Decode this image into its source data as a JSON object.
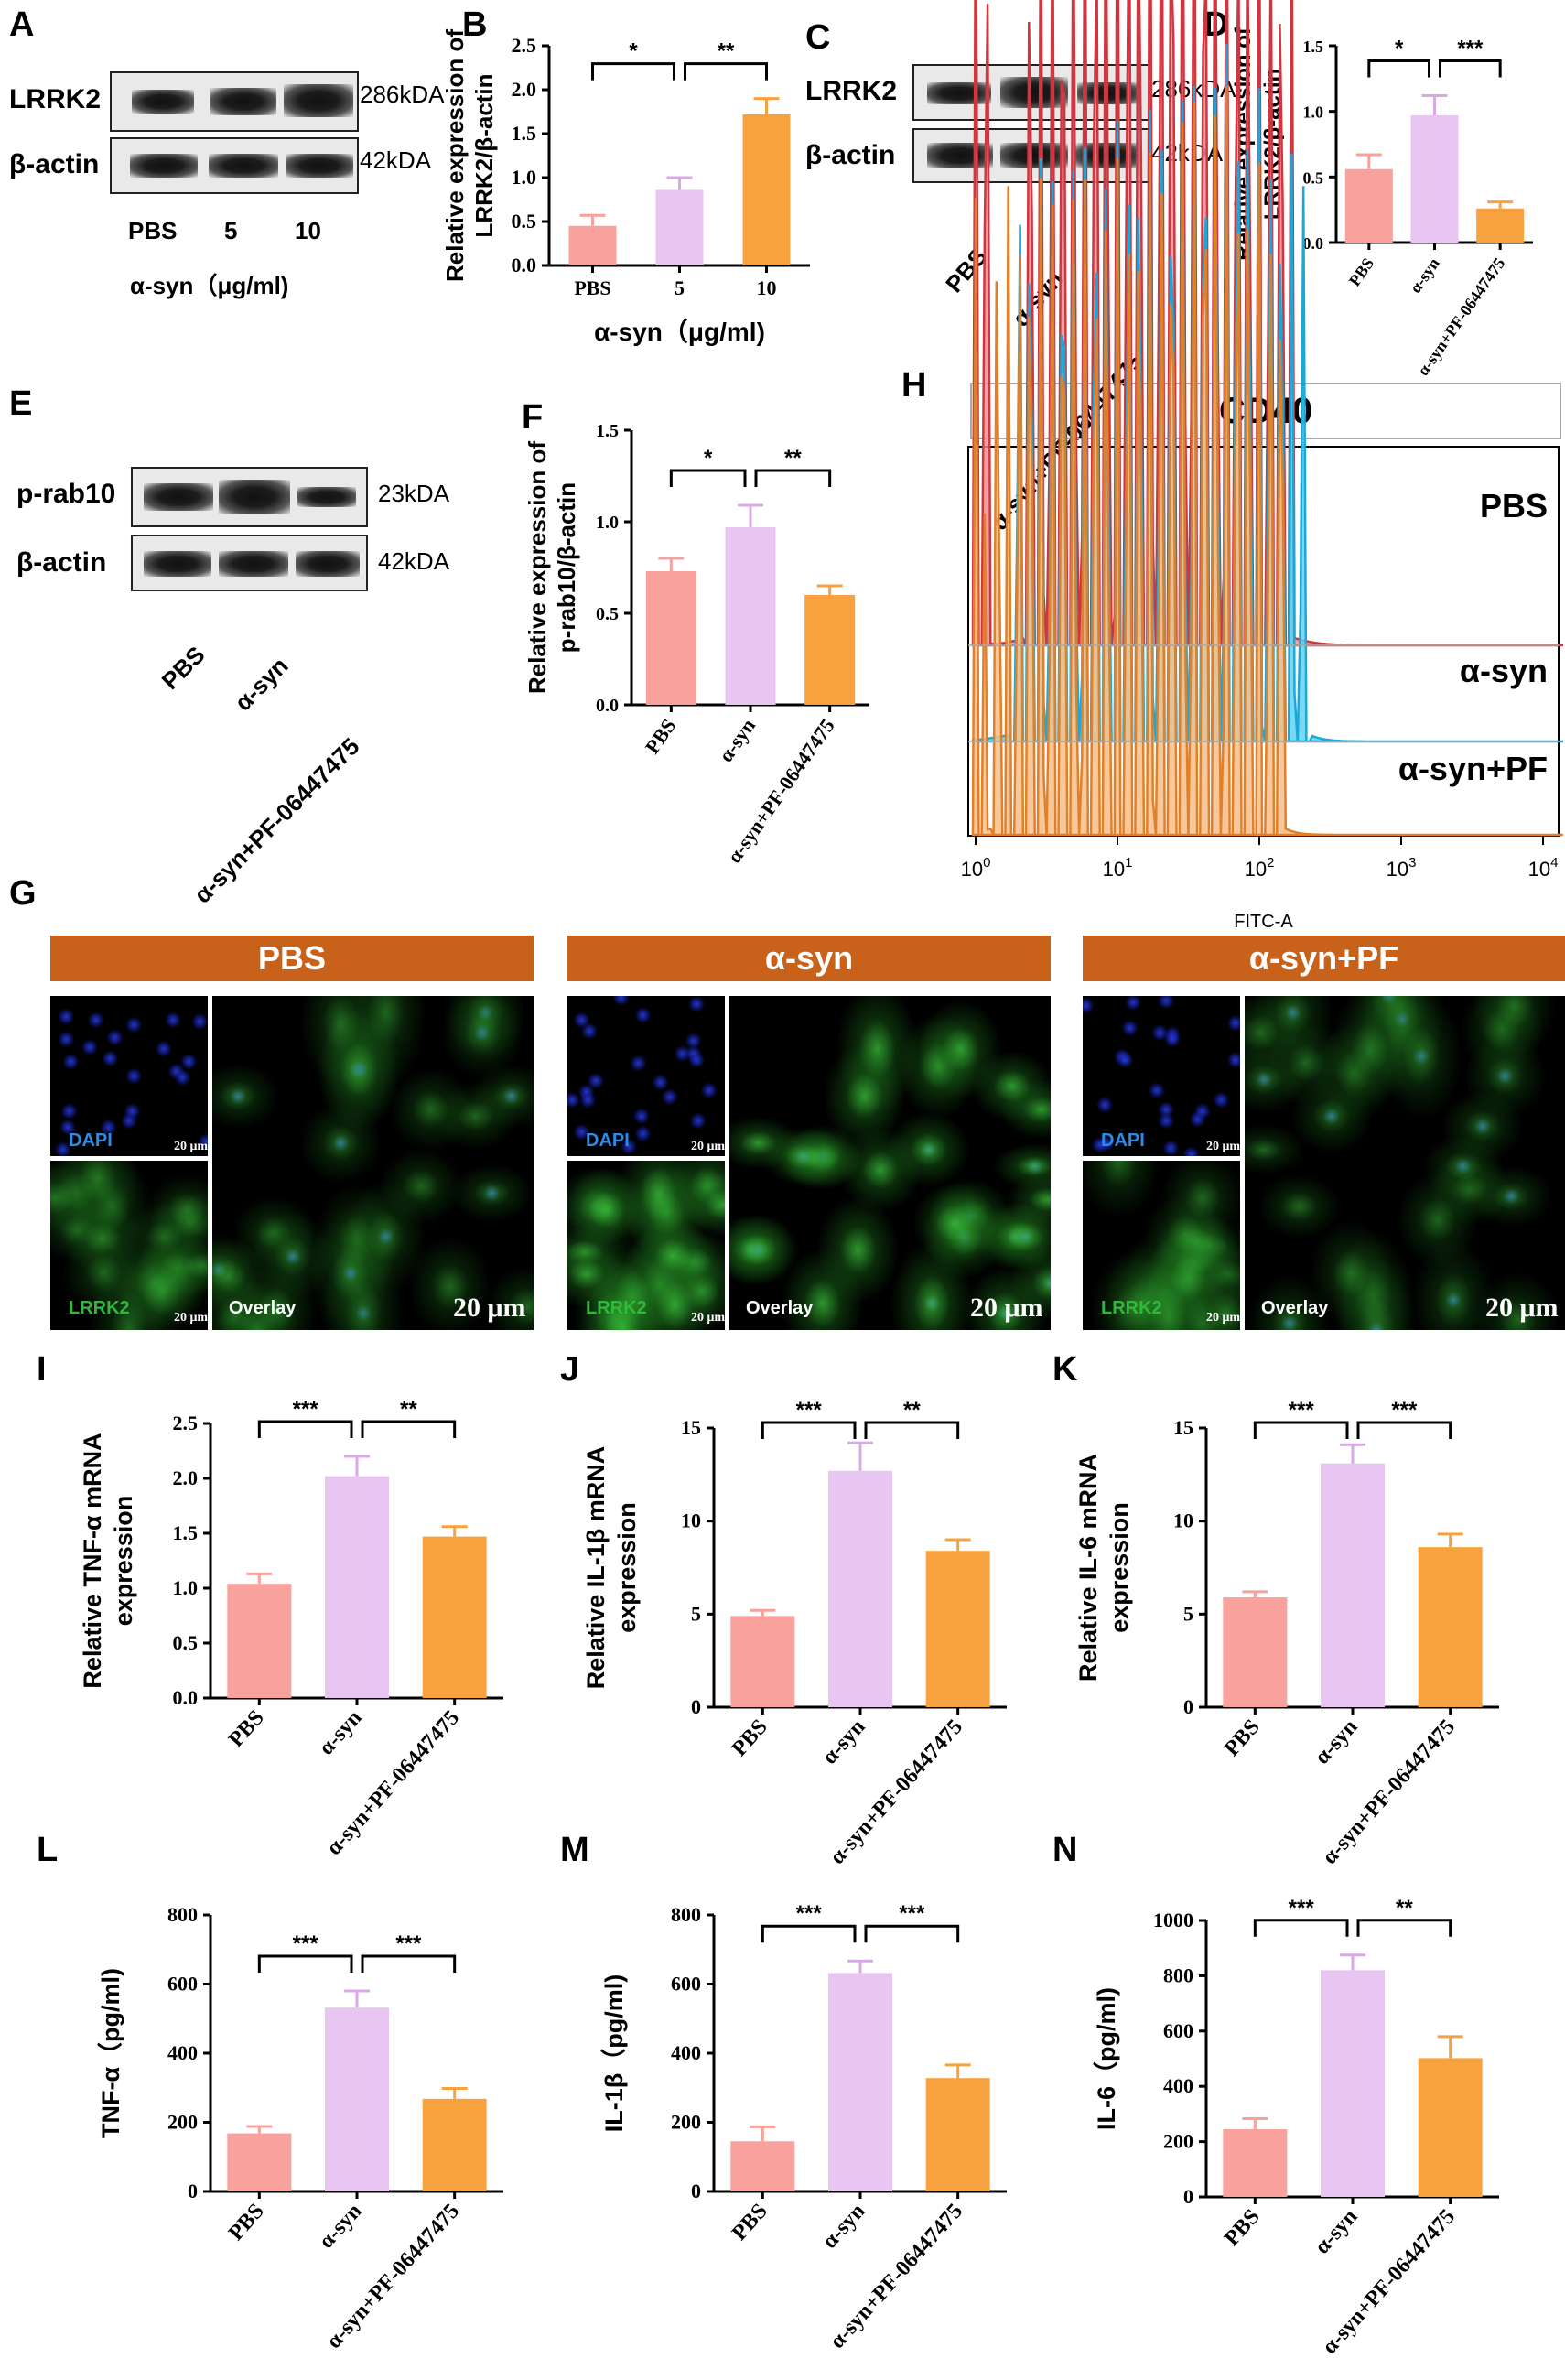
{
  "panels": {
    "A": "A",
    "B": "B",
    "C": "C",
    "D": "D",
    "E": "E",
    "F": "F",
    "G": "G",
    "H": "H",
    "I": "I",
    "J": "J",
    "K": "K",
    "L": "L",
    "M": "M",
    "N": "N"
  },
  "blot_A": {
    "rows": [
      "LRRK2",
      "β-actin"
    ],
    "kda": [
      "286kDA",
      "42kDA"
    ],
    "lanes": [
      "PBS",
      "5",
      "10"
    ],
    "xlabel": "α-syn（μg/ml)"
  },
  "blot_C": {
    "rows": [
      "LRRK2",
      "β-actin"
    ],
    "kda": [
      "286kDA",
      "42kDA"
    ],
    "lanes": [
      "PBS",
      "α-syn",
      "α-syn+PF-06447475"
    ]
  },
  "blot_E": {
    "rows": [
      "p-rab10",
      "β-actin"
    ],
    "kda": [
      "23kDA",
      "42kDA"
    ],
    "lanes": [
      "PBS",
      "α-syn",
      "α-syn+PF-06447475"
    ]
  },
  "flow": {
    "title": "CD40",
    "labels": [
      "PBS",
      "α-syn",
      "α-syn+PF"
    ],
    "xlabel": "FITC-A",
    "ticks": [
      "10",
      "10",
      "10",
      "10",
      "10"
    ],
    "tick_exp": [
      "0",
      "1",
      "2",
      "3",
      "4"
    ]
  },
  "if": {
    "groups": [
      "PBS",
      "α-syn",
      "α-syn+PF"
    ],
    "dapi": "DAPI",
    "lrrk2": "LRRK2",
    "overlay": "Overlay",
    "scale_small": "20 μm",
    "scale_big": "20 μm"
  },
  "colors": {
    "pbs": "#f9a19c",
    "asyn": "#e9c6f2",
    "pf": "#f8a23f",
    "flow_pbs": "#f28c93",
    "flow_asyn": "#5fd4f0",
    "flow_pf": "#f7be8a"
  },
  "chart_data": [
    {
      "id": "B",
      "type": "bar",
      "categories": [
        "PBS",
        "5",
        "10"
      ],
      "values": [
        0.45,
        0.86,
        1.72
      ],
      "errors": [
        0.12,
        0.14,
        0.18
      ],
      "ylim": [
        0,
        2.5
      ],
      "yticks": [
        "0.0",
        "0.5",
        "1.0",
        "1.5",
        "2.0",
        "2.5"
      ],
      "ylabel": "Relative expression of LRRK2/β-actin",
      "xlabel": "α-syn（μg/ml)",
      "sig": [
        {
          "a": 0,
          "b": 1,
          "t": "*"
        },
        {
          "a": 1,
          "b": 2,
          "t": "**"
        }
      ]
    },
    {
      "id": "D",
      "type": "bar",
      "categories": [
        "PBS",
        "α-syn",
        "α-syn+PF-06447475"
      ],
      "values": [
        0.56,
        0.97,
        0.26
      ],
      "errors": [
        0.11,
        0.15,
        0.05
      ],
      "ylim": [
        0,
        1.5
      ],
      "yticks": [
        "0.0",
        "0.5",
        "1.0",
        "1.5"
      ],
      "ylabel": "Relative expression of LRRK2/β-actin",
      "xlabel": "",
      "sig": [
        {
          "a": 0,
          "b": 1,
          "t": "*"
        },
        {
          "a": 1,
          "b": 2,
          "t": "***"
        }
      ]
    },
    {
      "id": "F",
      "type": "bar",
      "categories": [
        "PBS",
        "α-syn",
        "α-syn+PF-06447475"
      ],
      "values": [
        0.73,
        0.97,
        0.6
      ],
      "errors": [
        0.07,
        0.12,
        0.05
      ],
      "ylim": [
        0,
        1.5
      ],
      "yticks": [
        "0.0",
        "0.5",
        "1.0",
        "1.5"
      ],
      "ylabel": "Relative expression of p-rab10/β-actin",
      "xlabel": "",
      "sig": [
        {
          "a": 0,
          "b": 1,
          "t": "*"
        },
        {
          "a": 1,
          "b": 2,
          "t": "**"
        }
      ]
    },
    {
      "id": "I",
      "type": "bar",
      "categories": [
        "PBS",
        "α-syn",
        "α-syn+PF-06447475"
      ],
      "values": [
        1.04,
        2.02,
        1.47
      ],
      "errors": [
        0.09,
        0.18,
        0.09
      ],
      "ylim": [
        0,
        2.5
      ],
      "yticks": [
        "0.0",
        "0.5",
        "1.0",
        "1.5",
        "2.0",
        "2.5"
      ],
      "ylabel": "Relative TNF-α mRNA expression",
      "xlabel": "",
      "sig": [
        {
          "a": 0,
          "b": 1,
          "t": "***"
        },
        {
          "a": 1,
          "b": 2,
          "t": "**"
        }
      ]
    },
    {
      "id": "J",
      "type": "bar",
      "categories": [
        "PBS",
        "α-syn",
        "α-syn+PF-06447475"
      ],
      "values": [
        4.9,
        12.7,
        8.4
      ],
      "errors": [
        0.3,
        1.5,
        0.6
      ],
      "ylim": [
        0,
        15
      ],
      "yticks": [
        "0",
        "5",
        "10",
        "15"
      ],
      "ylabel": "Relative IL-1β mRNA expression",
      "xlabel": "",
      "sig": [
        {
          "a": 0,
          "b": 1,
          "t": "***"
        },
        {
          "a": 1,
          "b": 2,
          "t": "**"
        }
      ]
    },
    {
      "id": "K",
      "type": "bar",
      "categories": [
        "PBS",
        "α-syn",
        "α-syn+PF-06447475"
      ],
      "values": [
        5.9,
        13.1,
        8.6
      ],
      "errors": [
        0.3,
        1.0,
        0.7
      ],
      "ylim": [
        0,
        15
      ],
      "yticks": [
        "0",
        "5",
        "10",
        "15"
      ],
      "ylabel": "Relative IL-6 mRNA expression",
      "xlabel": "",
      "sig": [
        {
          "a": 0,
          "b": 1,
          "t": "***"
        },
        {
          "a": 1,
          "b": 2,
          "t": "***"
        }
      ]
    },
    {
      "id": "L",
      "type": "bar",
      "categories": [
        "PBS",
        "α-syn",
        "α-syn+PF-06447475"
      ],
      "values": [
        168,
        532,
        268
      ],
      "errors": [
        20,
        48,
        30
      ],
      "ylim": [
        0,
        800
      ],
      "yticks": [
        "0",
        "200",
        "400",
        "600",
        "800"
      ],
      "ylabel": "TNF-α（pg/ml)",
      "xlabel": "",
      "sig": [
        {
          "a": 0,
          "b": 1,
          "t": "***"
        },
        {
          "a": 1,
          "b": 2,
          "t": "***"
        }
      ]
    },
    {
      "id": "M",
      "type": "bar",
      "categories": [
        "PBS",
        "α-syn",
        "α-syn+PF-06447475"
      ],
      "values": [
        145,
        632,
        328
      ],
      "errors": [
        42,
        35,
        38
      ],
      "ylim": [
        0,
        800
      ],
      "yticks": [
        "0",
        "200",
        "400",
        "600",
        "800"
      ],
      "ylabel": "IL-1β（pg/ml)",
      "xlabel": "",
      "sig": [
        {
          "a": 0,
          "b": 1,
          "t": "***"
        },
        {
          "a": 1,
          "b": 2,
          "t": "***"
        }
      ]
    },
    {
      "id": "N",
      "type": "bar",
      "categories": [
        "PBS",
        "α-syn",
        "α-syn+PF-06447475"
      ],
      "values": [
        245,
        820,
        502
      ],
      "errors": [
        38,
        55,
        78
      ],
      "ylim": [
        0,
        1000
      ],
      "yticks": [
        "0",
        "200",
        "400",
        "600",
        "800",
        "1000"
      ],
      "ylabel": "IL-6（pg/ml)",
      "xlabel": "",
      "sig": [
        {
          "a": 0,
          "b": 1,
          "t": "***"
        },
        {
          "a": 1,
          "b": 2,
          "t": "**"
        }
      ]
    }
  ]
}
